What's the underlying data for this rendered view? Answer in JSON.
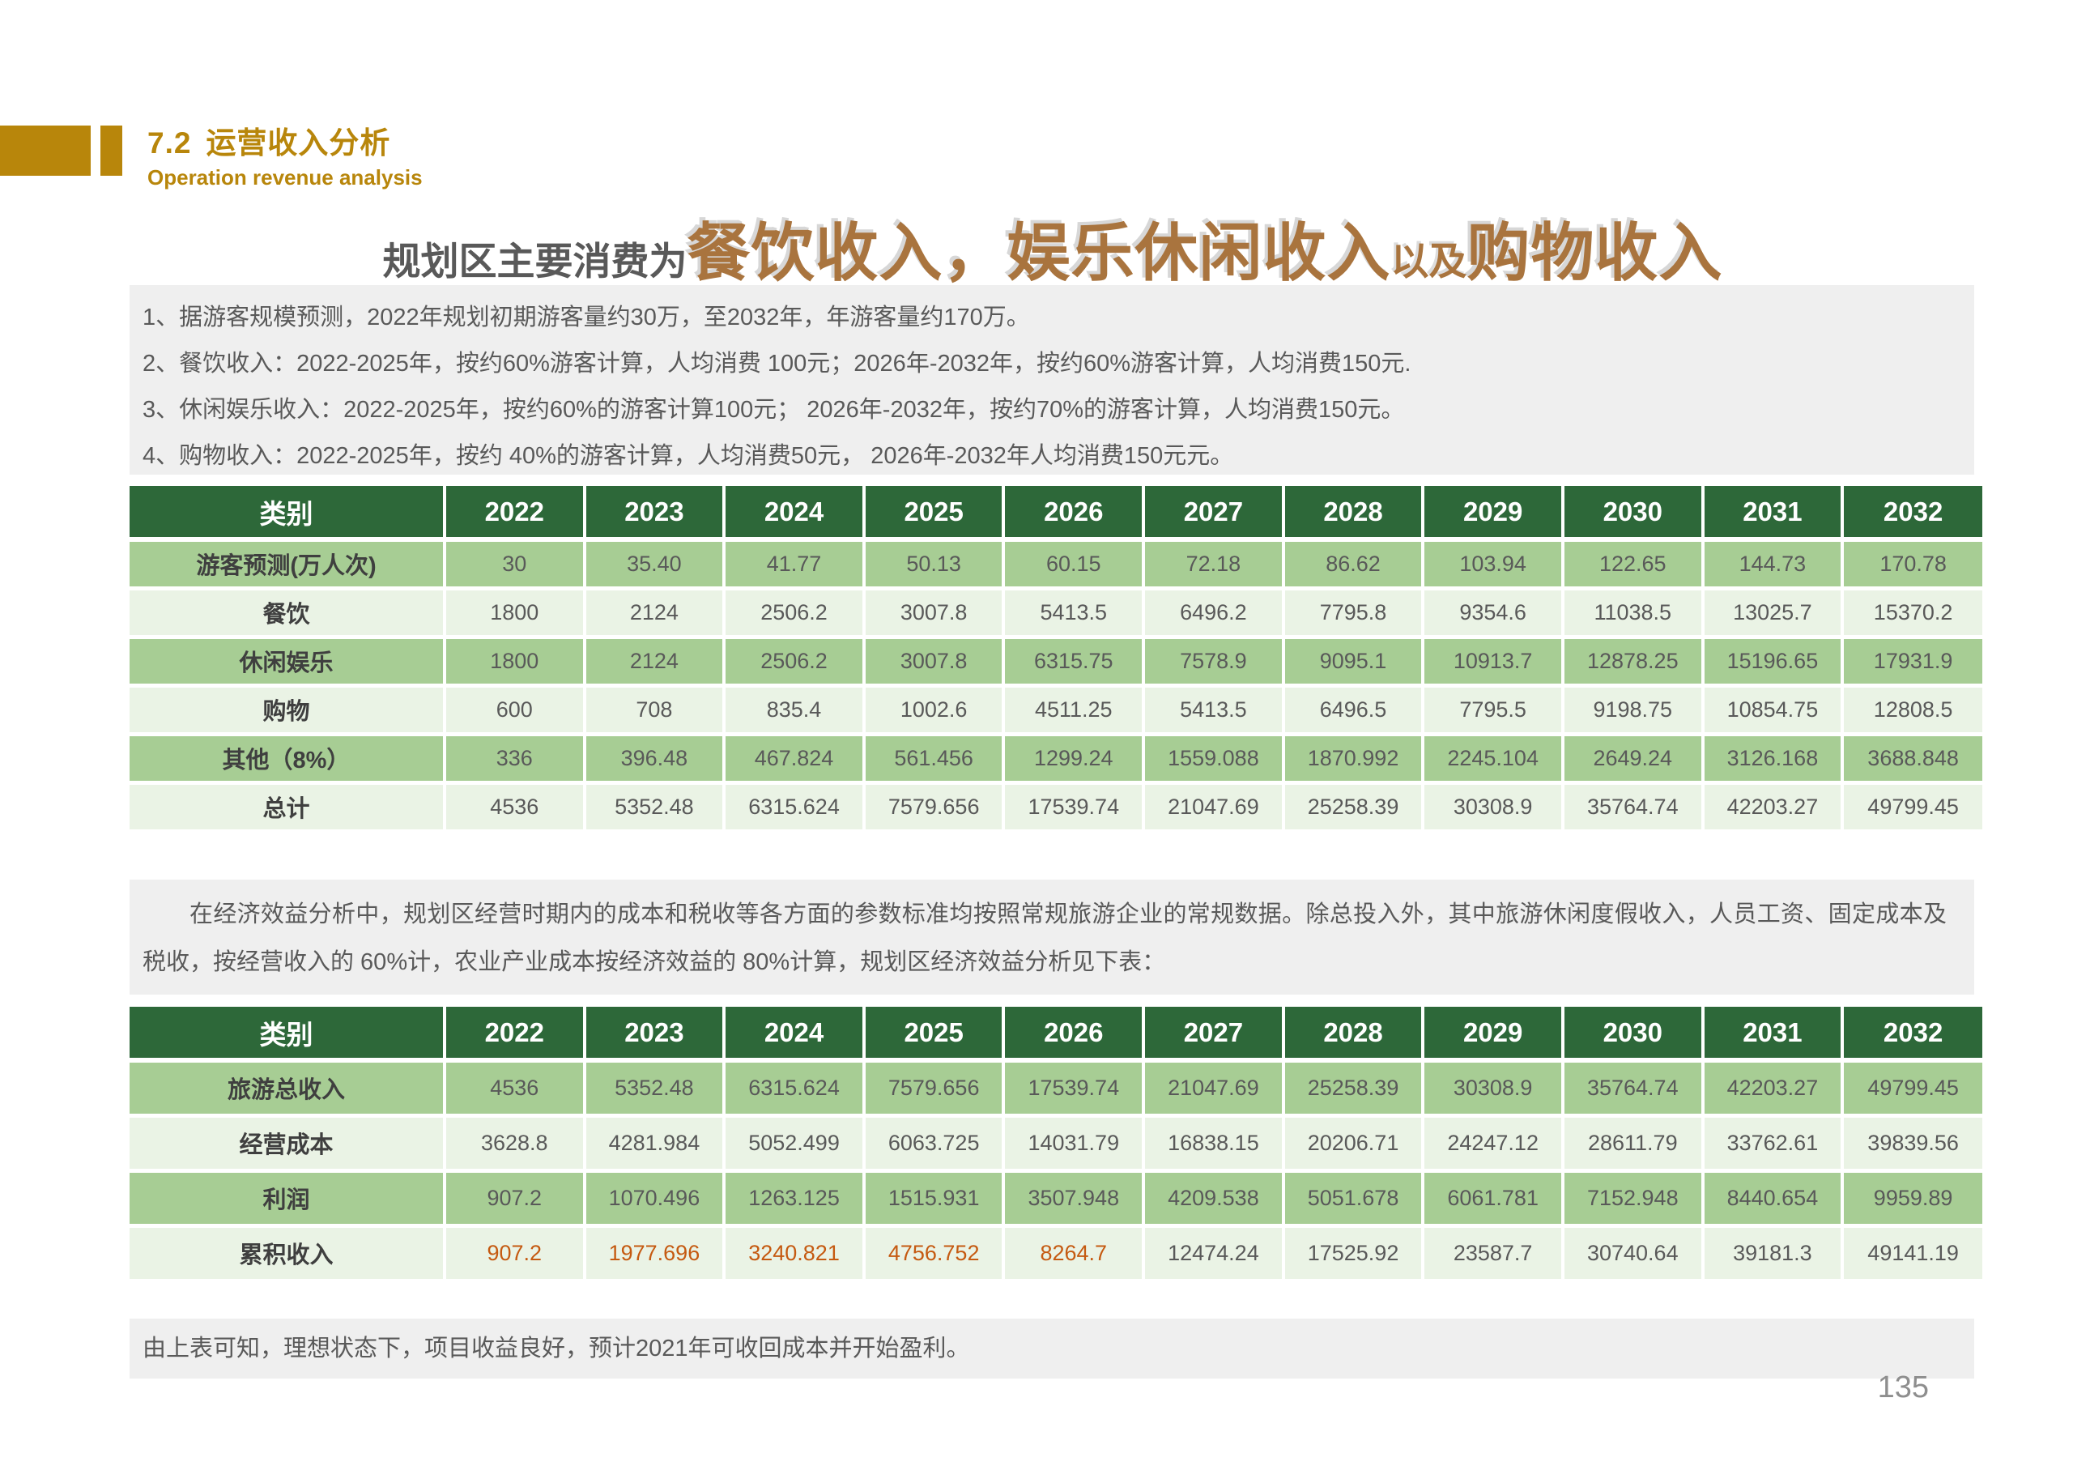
{
  "section": {
    "number": "7.2",
    "title": "运营收入分析",
    "subtitle": "Operation revenue analysis"
  },
  "main_title": {
    "prefix": "规划区主要消费为",
    "highlight1": "餐饮收入，娱乐休闲收入",
    "connector": "以及",
    "highlight2": "购物收入"
  },
  "notes": [
    "1、据游客规模预测，2022年规划初期游客量约30万，至2032年，年游客量约170万。",
    "2、餐饮收入：2022-2025年，按约60%游客计算，人均消费 100元；2026年-2032年，按约60%游客计算，人均消费150元.",
    "3、休闲娱乐收入：2022-2025年，按约60%的游客计算100元；  2026年-2032年，按约70%的游客计算，人均消费150元。",
    "4、购物收入：2022-2025年，按约 40%的游客计算，人均消费50元，  2026年-2032年人均消费150元元。"
  ],
  "table1": {
    "header": [
      "类别",
      "2022",
      "2023",
      "2024",
      "2025",
      "2026",
      "2027",
      "2028",
      "2029",
      "2030",
      "2031",
      "2032"
    ],
    "rows": [
      {
        "label": "游客预测(万人次)",
        "values": [
          "30",
          "35.40",
          "41.77",
          "50.13",
          "60.15",
          "72.18",
          "86.62",
          "103.94",
          "122.65",
          "144.73",
          "170.78"
        ]
      },
      {
        "label": "餐饮",
        "values": [
          "1800",
          "2124",
          "2506.2",
          "3007.8",
          "5413.5",
          "6496.2",
          "7795.8",
          "9354.6",
          "11038.5",
          "13025.7",
          "15370.2"
        ]
      },
      {
        "label": "休闲娱乐",
        "values": [
          "1800",
          "2124",
          "2506.2",
          "3007.8",
          "6315.75",
          "7578.9",
          "9095.1",
          "10913.7",
          "12878.25",
          "15196.65",
          "17931.9"
        ]
      },
      {
        "label": "购物",
        "values": [
          "600",
          "708",
          "835.4",
          "1002.6",
          "4511.25",
          "5413.5",
          "6496.5",
          "7795.5",
          "9198.75",
          "10854.75",
          "12808.5"
        ]
      },
      {
        "label": "其他（8%）",
        "values": [
          "336",
          "396.48",
          "467.824",
          "561.456",
          "1299.24",
          "1559.088",
          "1870.992",
          "2245.104",
          "2649.24",
          "3126.168",
          "3688.848"
        ]
      },
      {
        "label": "总计",
        "values": [
          "4536",
          "5352.48",
          "6315.624",
          "7579.656",
          "17539.74",
          "21047.69",
          "25258.39",
          "30308.9",
          "35764.74",
          "42203.27",
          "49799.45"
        ]
      }
    ]
  },
  "paragraph": "在经济效益分析中，规划区经营时期内的成本和税收等各方面的参数标准均按照常规旅游企业的常规数据。除总投入外，其中旅游休闲度假收入，人员工资、固定成本及税收，按经营收入的 60%计，农业产业成本按经济效益的 80%计算，规划区经济效益分析见下表：",
  "table2": {
    "header": [
      "类别",
      "2022",
      "2023",
      "2024",
      "2025",
      "2026",
      "2027",
      "2028",
      "2029",
      "2030",
      "2031",
      "2032"
    ],
    "rows": [
      {
        "label": "旅游总收入",
        "values": [
          "4536",
          "5352.48",
          "6315.624",
          "7579.656",
          "17539.74",
          "21047.69",
          "25258.39",
          "30308.9",
          "35764.74",
          "42203.27",
          "49799.45"
        ]
      },
      {
        "label": "经营成本",
        "values": [
          "3628.8",
          "4281.984",
          "5052.499",
          "6063.725",
          "14031.79",
          "16838.15",
          "20206.71",
          "24247.12",
          "28611.79",
          "33762.61",
          "39839.56"
        ]
      },
      {
        "label": "利润",
        "values": [
          "907.2",
          "1070.496",
          "1263.125",
          "1515.931",
          "3507.948",
          "4209.538",
          "5051.678",
          "6061.781",
          "7152.948",
          "8440.654",
          "9959.89"
        ]
      },
      {
        "label": "累积收入",
        "values": [
          "907.2",
          "1977.696",
          "3240.821",
          "4756.752",
          "8264.7",
          "12474.24",
          "17525.92",
          "23587.7",
          "30740.64",
          "39181.3",
          "49141.19"
        ],
        "highlight_count": 5
      }
    ]
  },
  "footnote": "由上表可知，理想状态下，项目收益良好，预计2021年可收回成本并开始盈利。",
  "page_number": "135",
  "colors": {
    "accent_gold": "#B8860B",
    "title_brown": "#A9743E",
    "table_header_green": "#2D6839",
    "row_green": "#A7CD94",
    "row_light_green": "#EAF3E5",
    "box_gray": "#EFEFEF",
    "highlight_orange": "#C55A11",
    "text_gray": "#595959"
  }
}
